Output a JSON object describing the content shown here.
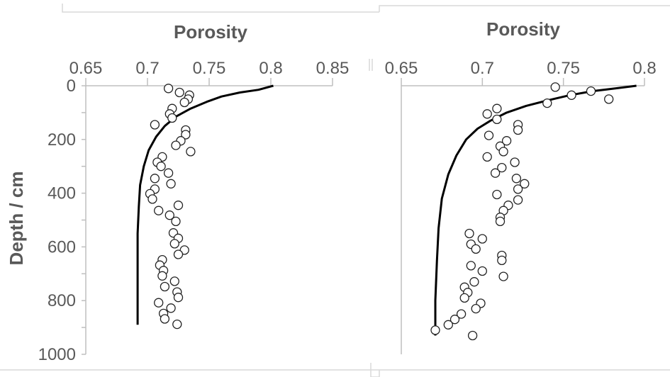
{
  "chart_data": [
    {
      "type": "scatter",
      "xlabel": "Porosity",
      "ylabel": "Depth / cm",
      "xlim": [
        0.65,
        0.85
      ],
      "ylim": [
        1000,
        0
      ],
      "x_axis_position": "top",
      "x_ticks": [
        "0.65",
        "0.7",
        "0.75",
        "0.8",
        "0.85"
      ],
      "y_ticks": [
        "0",
        "200",
        "400",
        "600",
        "800",
        "1000"
      ],
      "series": [
        {
          "kind": "points",
          "points": [
            [
              0.717,
              10
            ],
            [
              0.726,
              25
            ],
            [
              0.734,
              35
            ],
            [
              0.733,
              50
            ],
            [
              0.73,
              62
            ],
            [
              0.72,
              85
            ],
            [
              0.718,
              105
            ],
            [
              0.72,
              120
            ],
            [
              0.706,
              145
            ],
            [
              0.731,
              165
            ],
            [
              0.731,
              182
            ],
            [
              0.727,
              205
            ],
            [
              0.723,
              222
            ],
            [
              0.735,
              245
            ],
            [
              0.712,
              265
            ],
            [
              0.708,
              285
            ],
            [
              0.711,
              300
            ],
            [
              0.717,
              325
            ],
            [
              0.706,
              345
            ],
            [
              0.719,
              365
            ],
            [
              0.706,
              385
            ],
            [
              0.702,
              402
            ],
            [
              0.704,
              422
            ],
            [
              0.725,
              445
            ],
            [
              0.709,
              465
            ],
            [
              0.718,
              482
            ],
            [
              0.723,
              505
            ],
            [
              0.721,
              548
            ],
            [
              0.725,
              568
            ],
            [
              0.722,
              588
            ],
            [
              0.73,
              612
            ],
            [
              0.725,
              628
            ],
            [
              0.712,
              648
            ],
            [
              0.71,
              668
            ],
            [
              0.713,
              688
            ],
            [
              0.712,
              708
            ],
            [
              0.722,
              728
            ],
            [
              0.714,
              748
            ],
            [
              0.724,
              768
            ],
            [
              0.725,
              788
            ],
            [
              0.709,
              808
            ],
            [
              0.719,
              828
            ],
            [
              0.713,
              848
            ],
            [
              0.714,
              868
            ],
            [
              0.724,
              888
            ]
          ]
        },
        {
          "kind": "line",
          "points": [
            [
              0.802,
              0
            ],
            [
              0.79,
              15
            ],
            [
              0.775,
              25
            ],
            [
              0.76,
              40
            ],
            [
              0.748,
              60
            ],
            [
              0.735,
              85
            ],
            [
              0.723,
              115
            ],
            [
              0.714,
              150
            ],
            [
              0.707,
              190
            ],
            [
              0.701,
              240
            ],
            [
              0.697,
              300
            ],
            [
              0.694,
              370
            ],
            [
              0.693,
              450
            ],
            [
              0.692,
              550
            ],
            [
              0.692,
              700
            ],
            [
              0.692,
              890
            ]
          ]
        }
      ]
    },
    {
      "type": "scatter",
      "xlabel": "Porosity",
      "xlim": [
        0.65,
        0.8
      ],
      "ylim": [
        1000,
        0
      ],
      "x_axis_position": "top",
      "x_ticks": [
        "0.65",
        "0.7",
        "0.75",
        "0.8"
      ],
      "series": [
        {
          "kind": "points",
          "points": [
            [
              0.745,
              5
            ],
            [
              0.767,
              20
            ],
            [
              0.755,
              35
            ],
            [
              0.778,
              50
            ],
            [
              0.74,
              65
            ],
            [
              0.709,
              85
            ],
            [
              0.703,
              105
            ],
            [
              0.709,
              125
            ],
            [
              0.722,
              145
            ],
            [
              0.722,
              165
            ],
            [
              0.704,
              185
            ],
            [
              0.715,
              205
            ],
            [
              0.711,
              225
            ],
            [
              0.713,
              245
            ],
            [
              0.703,
              265
            ],
            [
              0.72,
              285
            ],
            [
              0.712,
              305
            ],
            [
              0.708,
              325
            ],
            [
              0.721,
              345
            ],
            [
              0.726,
              365
            ],
            [
              0.722,
              385
            ],
            [
              0.709,
              405
            ],
            [
              0.722,
              425
            ],
            [
              0.716,
              445
            ],
            [
              0.713,
              465
            ],
            [
              0.711,
              490
            ],
            [
              0.711,
              505
            ],
            [
              0.692,
              550
            ],
            [
              0.7,
              570
            ],
            [
              0.693,
              590
            ],
            [
              0.696,
              608
            ],
            [
              0.712,
              632
            ],
            [
              0.712,
              650
            ],
            [
              0.693,
              670
            ],
            [
              0.7,
              690
            ],
            [
              0.713,
              710
            ],
            [
              0.695,
              730
            ],
            [
              0.689,
              750
            ],
            [
              0.691,
              770
            ],
            [
              0.689,
              790
            ],
            [
              0.699,
              810
            ],
            [
              0.696,
              830
            ],
            [
              0.687,
              850
            ],
            [
              0.683,
              870
            ],
            [
              0.679,
              890
            ],
            [
              0.671,
              910
            ],
            [
              0.694,
              930
            ]
          ]
        },
        {
          "kind": "line",
          "points": [
            [
              0.795,
              0
            ],
            [
              0.782,
              10
            ],
            [
              0.768,
              20
            ],
            [
              0.754,
              35
            ],
            [
              0.74,
              55
            ],
            [
              0.727,
              75
            ],
            [
              0.715,
              100
            ],
            [
              0.705,
              130
            ],
            [
              0.697,
              160
            ],
            [
              0.69,
              200
            ],
            [
              0.684,
              260
            ],
            [
              0.679,
              330
            ],
            [
              0.675,
              420
            ],
            [
              0.673,
              530
            ],
            [
              0.672,
              650
            ],
            [
              0.671,
              800
            ],
            [
              0.671,
              930
            ]
          ]
        }
      ]
    }
  ]
}
